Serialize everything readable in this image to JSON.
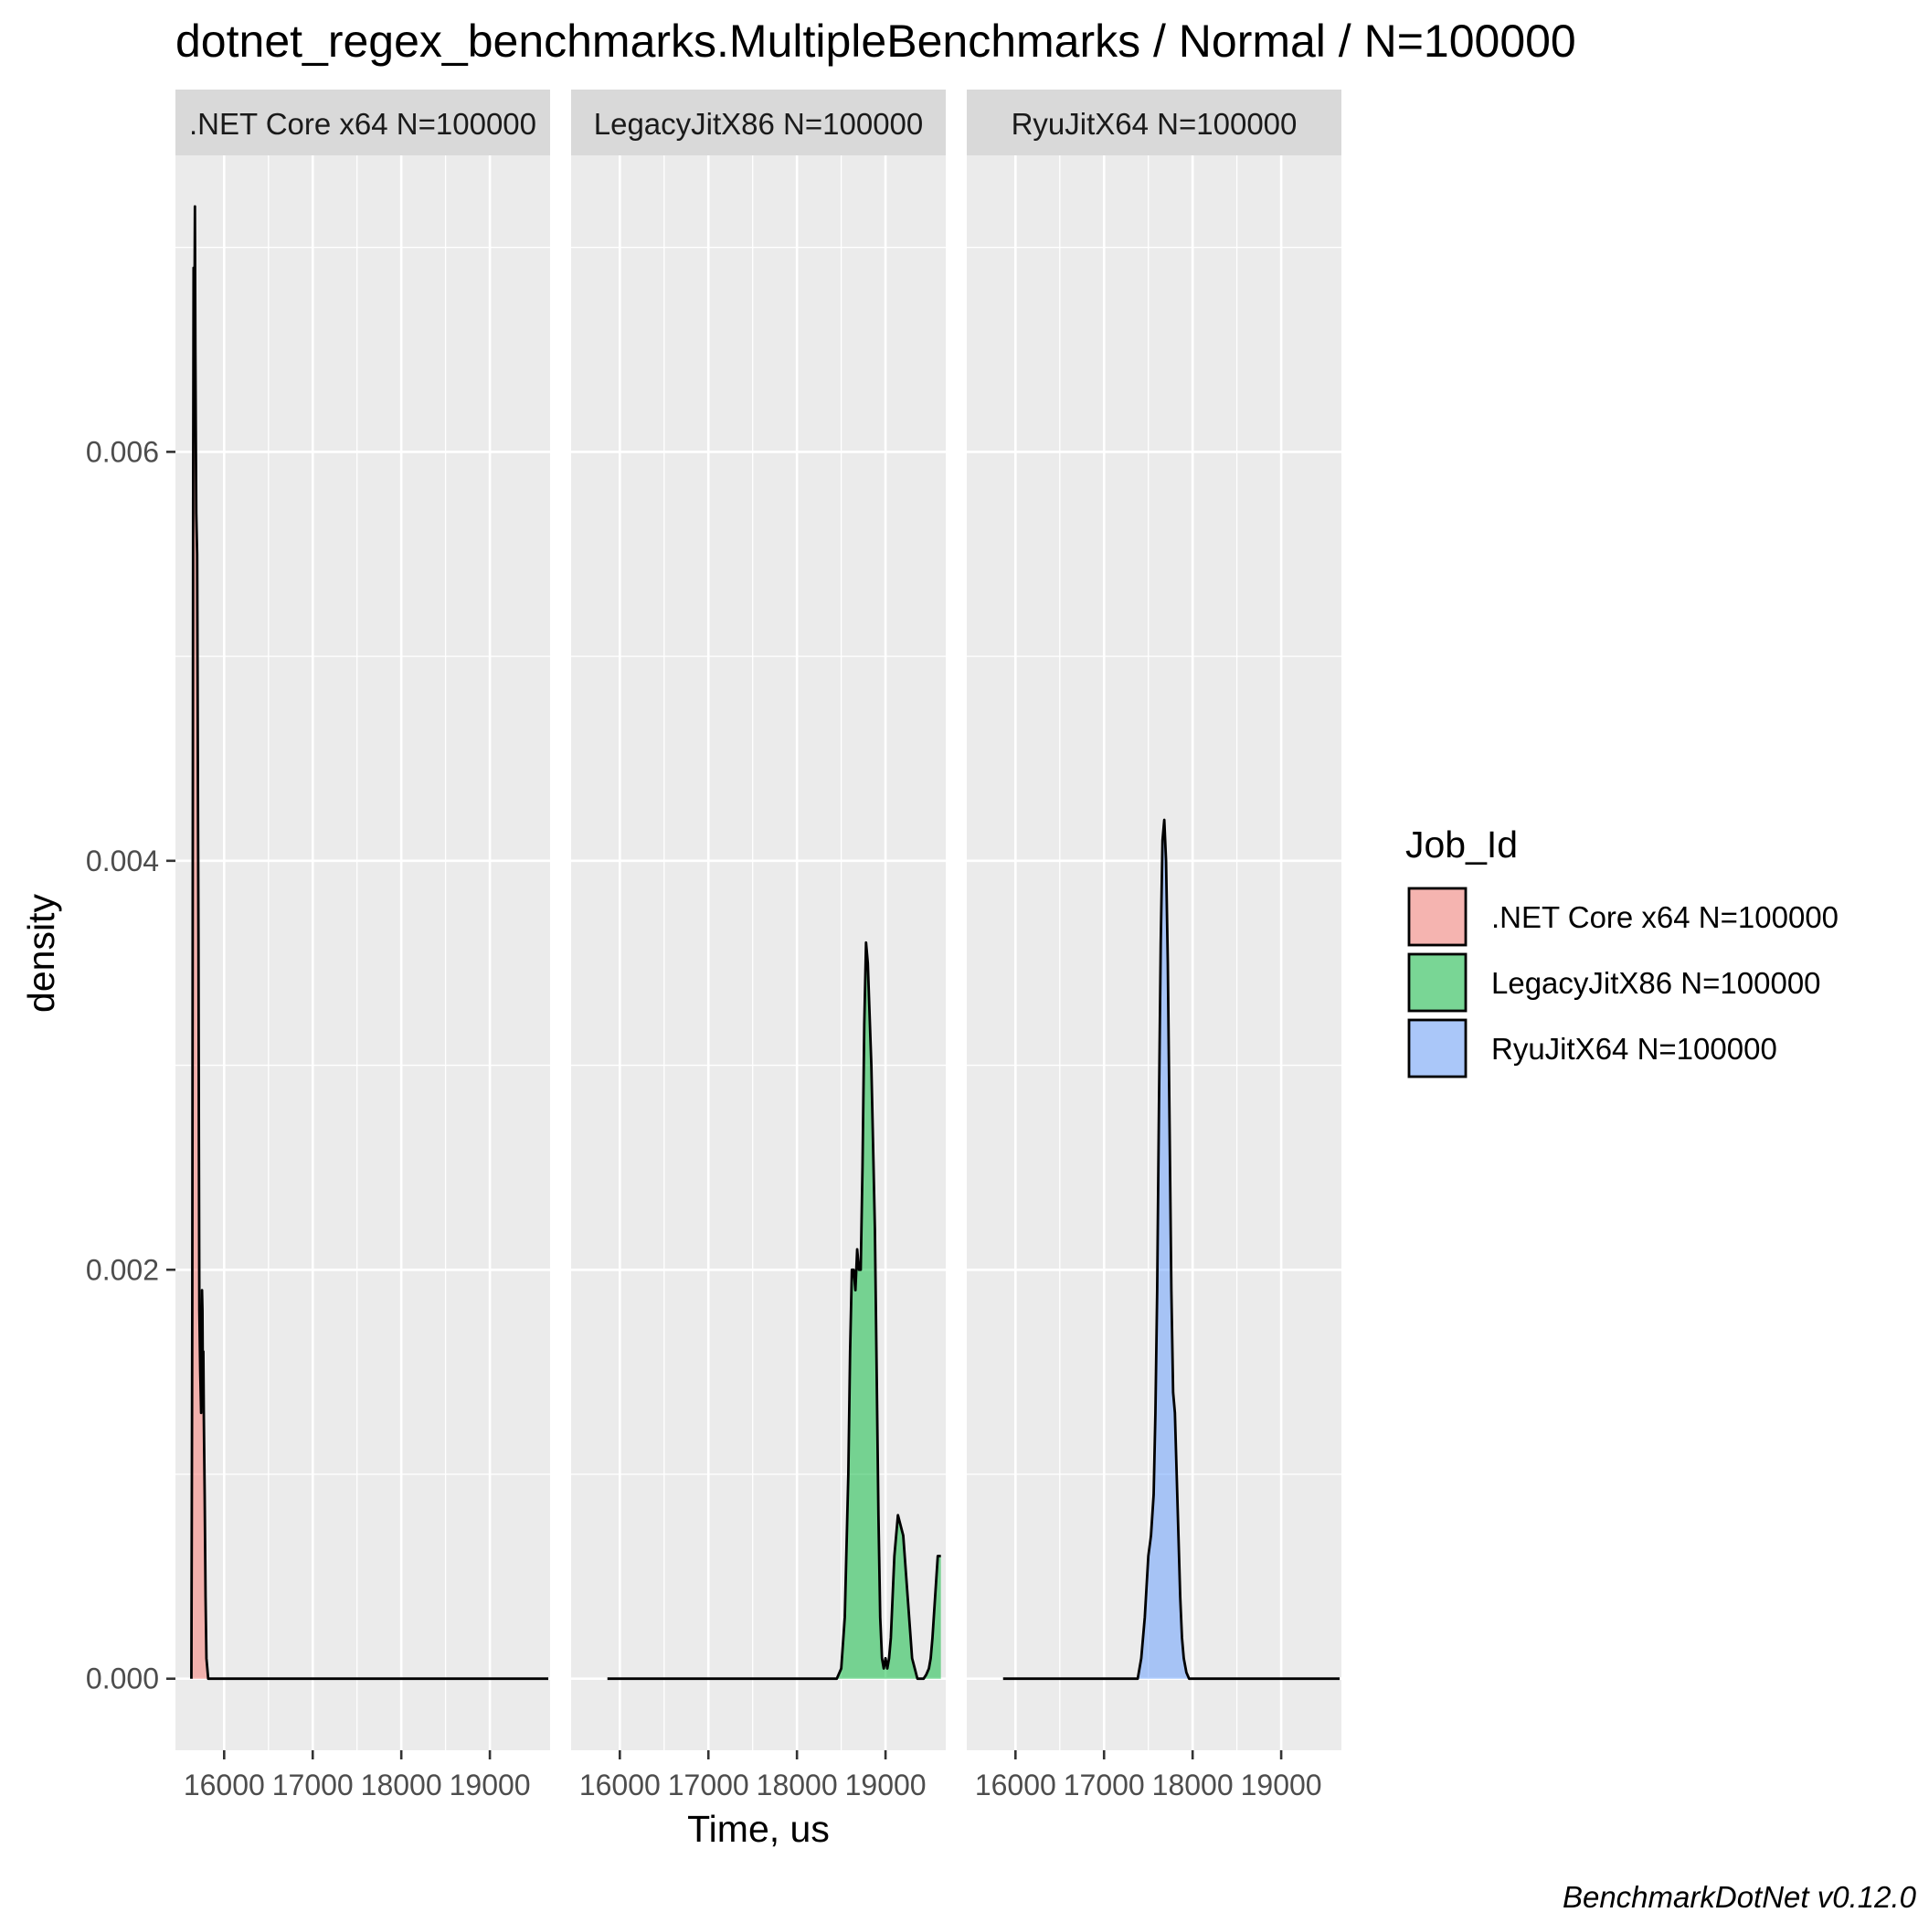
{
  "chart_data": {
    "type": "area",
    "title": "dotnet_regex_benchmarks.MultipleBenchmarks / Normal / N=100000",
    "xlabel": "Time, us",
    "ylabel": "density",
    "caption": "BenchmarkDotNet v0.12.0",
    "xlim": [
      15450,
      19680
    ],
    "ylim": [
      -0.00035,
      0.00745
    ],
    "x_ticks": [
      16000,
      17000,
      18000,
      19000
    ],
    "x_tick_labels": [
      "16000",
      "17000",
      "18000",
      "19000"
    ],
    "y_ticks": [
      0,
      0.002,
      0.004,
      0.006
    ],
    "y_tick_labels": [
      "0.000",
      "0.002",
      "0.004",
      "0.006"
    ],
    "grid": true,
    "legend": {
      "title": "Job_Id",
      "position": "right",
      "entries": [
        ".NET Core x64 N=100000",
        "LegacyJitX86 N=100000",
        "RyuJitX64 N=100000"
      ]
    },
    "series": [
      {
        "name": ".NET Core x64 N=100000",
        "strip_label": ".NET Core x64 N=100000",
        "color": "#F8766D",
        "x": [
          15630,
          15640,
          15650,
          15655,
          15660,
          15665,
          15670,
          15675,
          15680,
          15685,
          15690,
          15695,
          15700,
          15705,
          15710,
          15715,
          15720,
          15730,
          15740,
          15745,
          15750,
          15755,
          15760,
          15765,
          15770,
          15775,
          15780,
          15790,
          15800,
          15820,
          15850,
          15900,
          16000,
          17000,
          18000,
          19000,
          19660
        ],
        "y": [
          0.0,
          0.0018,
          0.0058,
          0.0069,
          0.0063,
          0.0067,
          0.0072,
          0.0065,
          0.0061,
          0.0057,
          0.0056,
          0.0055,
          0.0049,
          0.0042,
          0.0036,
          0.0026,
          0.0018,
          0.0015,
          0.0013,
          0.0016,
          0.0019,
          0.0018,
          0.0014,
          0.0016,
          0.0013,
          0.0011,
          0.0009,
          0.0004,
          0.0001,
          0.0,
          0.0,
          0.0,
          0.0,
          0.0,
          0.0,
          0.0,
          0.0
        ]
      },
      {
        "name": "LegacyJitX86 N=100000",
        "strip_label": "LegacyJitX86 N=100000",
        "color": "#00BA38",
        "x": [
          15860,
          17000,
          18000,
          18450,
          18500,
          18540,
          18580,
          18600,
          18620,
          18640,
          18660,
          18680,
          18700,
          18720,
          18740,
          18760,
          18780,
          18800,
          18840,
          18880,
          18900,
          18920,
          18940,
          18960,
          18980,
          19000,
          19020,
          19040,
          19060,
          19080,
          19100,
          19140,
          19200,
          19250,
          19300,
          19330,
          19360,
          19400,
          19430,
          19460,
          19490,
          19510,
          19530,
          19560,
          19590,
          19625
        ],
        "y": [
          0.0,
          0.0,
          0.0,
          0.0,
          5e-05,
          0.0003,
          0.001,
          0.0016,
          0.002,
          0.002,
          0.0019,
          0.0021,
          0.002,
          0.002,
          0.0025,
          0.0032,
          0.0036,
          0.0035,
          0.003,
          0.0022,
          0.0015,
          0.0008,
          0.0003,
          0.0001,
          5e-05,
          0.0001,
          5e-05,
          0.0001,
          0.0002,
          0.0004,
          0.0006,
          0.0008,
          0.0007,
          0.0004,
          0.0001,
          5e-05,
          0.0,
          0.0,
          0.0,
          2e-05,
          5e-05,
          0.0001,
          0.0002,
          0.0004,
          0.0006,
          0.0006
        ]
      },
      {
        "name": "RyuJitX64 N=100000",
        "strip_label": "RyuJitX64 N=100000",
        "color": "#619CFF",
        "x": [
          15860,
          17000,
          17380,
          17420,
          17460,
          17500,
          17530,
          17560,
          17580,
          17600,
          17620,
          17640,
          17660,
          17680,
          17700,
          17720,
          17740,
          17760,
          17780,
          17800,
          17820,
          17840,
          17860,
          17880,
          17900,
          17930,
          17960,
          18000,
          18050,
          19000,
          19660
        ],
        "y": [
          0.0,
          0.0,
          0.0,
          0.0001,
          0.0003,
          0.0006,
          0.0007,
          0.0009,
          0.0013,
          0.0019,
          0.0028,
          0.0036,
          0.0041,
          0.0042,
          0.004,
          0.0035,
          0.0027,
          0.0019,
          0.0014,
          0.0013,
          0.001,
          0.0007,
          0.0004,
          0.0002,
          0.0001,
          3e-05,
          0.0,
          0.0,
          0.0,
          0.0,
          0.0
        ]
      }
    ]
  }
}
